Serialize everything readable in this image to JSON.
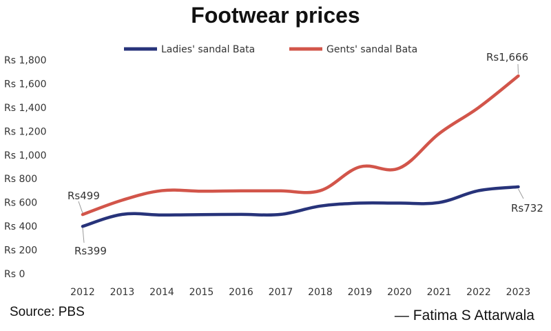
{
  "chart_data": {
    "type": "line",
    "title": "Footwear prices",
    "categories": [
      "2012",
      "2013",
      "2014",
      "2015",
      "2016",
      "2017",
      "2018",
      "2019",
      "2020",
      "2021",
      "2022",
      "2023"
    ],
    "series": [
      {
        "name": "Ladies' sandal Bata",
        "color": "#27337a",
        "values": [
          399,
          500,
          495,
          498,
          500,
          500,
          570,
          595,
          595,
          600,
          700,
          732
        ]
      },
      {
        "name": "Gents' sandal Bata",
        "color": "#d2554a",
        "values": [
          499,
          620,
          700,
          695,
          698,
          698,
          700,
          900,
          890,
          1180,
          1400,
          1666
        ]
      }
    ],
    "ylim": [
      0,
      1800
    ],
    "y_ticks": [
      "Rs 0",
      "Rs 200",
      "Rs 400",
      "Rs 600",
      "Rs 800",
      "Rs 1,000",
      "Rs 1,200",
      "Rs 1,400",
      "Rs 1,600",
      "Rs 1,800"
    ],
    "y_tick_values": [
      0,
      200,
      400,
      600,
      800,
      1000,
      1200,
      1400,
      1600,
      1800
    ],
    "annotations": [
      "Rs499",
      "Rs399",
      "Rs1,666",
      "Rs732"
    ],
    "legend_position": "top",
    "grid": false
  },
  "source": "Source: PBS",
  "credit": "— Fatima S Attarwala"
}
